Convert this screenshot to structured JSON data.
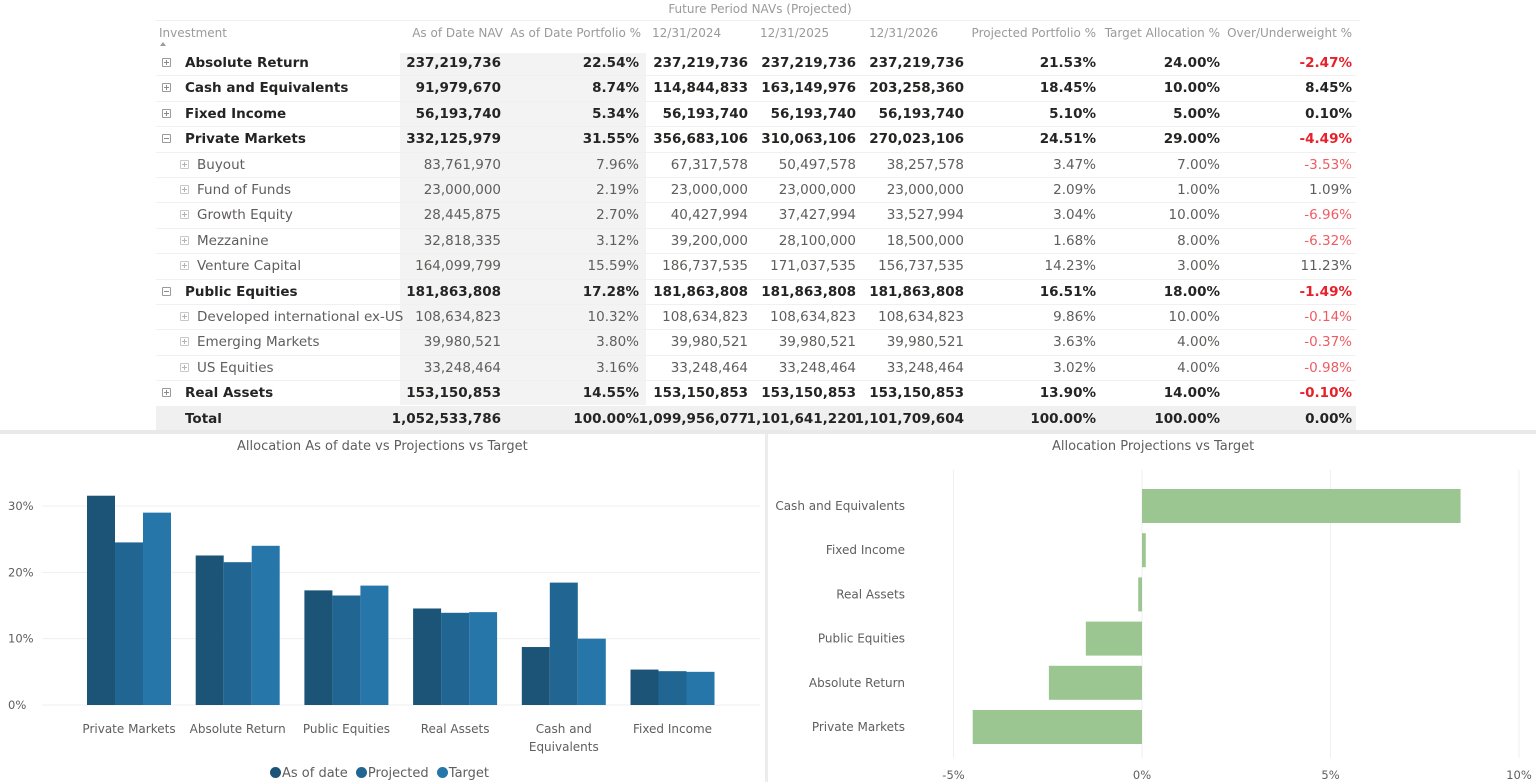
{
  "matrix": {
    "group_header": "Future Period NAVs (Projected)",
    "columns": [
      "Investment",
      "As of Date NAV",
      "As of Date Portfolio %",
      "12/31/2024",
      "12/31/2025",
      "12/31/2026",
      "Projected Portfolio %",
      "Target Allocation %",
      "Over/Underweight %"
    ],
    "sort": {
      "column": "Investment",
      "direction": "ascending"
    },
    "rows": [
      {
        "level": 0,
        "expanded": false,
        "label": "Absolute Return",
        "values": [
          "237,219,736",
          "22.54%",
          "237,219,736",
          "237,219,736",
          "237,219,736",
          "21.53%",
          "24.00%",
          "-2.47%"
        ],
        "negative": true
      },
      {
        "level": 0,
        "expanded": false,
        "label": "Cash and Equivalents",
        "values": [
          "91,979,670",
          "8.74%",
          "114,844,833",
          "163,149,976",
          "203,258,360",
          "18.45%",
          "10.00%",
          "8.45%"
        ],
        "negative": false
      },
      {
        "level": 0,
        "expanded": false,
        "label": "Fixed Income",
        "values": [
          "56,193,740",
          "5.34%",
          "56,193,740",
          "56,193,740",
          "56,193,740",
          "5.10%",
          "5.00%",
          "0.10%"
        ],
        "negative": false
      },
      {
        "level": 0,
        "expanded": true,
        "label": "Private Markets",
        "values": [
          "332,125,979",
          "31.55%",
          "356,683,106",
          "310,063,106",
          "270,023,106",
          "24.51%",
          "29.00%",
          "-4.49%"
        ],
        "negative": true
      },
      {
        "level": 1,
        "expanded": false,
        "label": "Buyout",
        "values": [
          "83,761,970",
          "7.96%",
          "67,317,578",
          "50,497,578",
          "38,257,578",
          "3.47%",
          "7.00%",
          "-3.53%"
        ],
        "negative": true
      },
      {
        "level": 1,
        "expanded": false,
        "label": "Fund of Funds",
        "values": [
          "23,000,000",
          "2.19%",
          "23,000,000",
          "23,000,000",
          "23,000,000",
          "2.09%",
          "1.00%",
          "1.09%"
        ],
        "negative": false
      },
      {
        "level": 1,
        "expanded": false,
        "label": "Growth Equity",
        "values": [
          "28,445,875",
          "2.70%",
          "40,427,994",
          "37,427,994",
          "33,527,994",
          "3.04%",
          "10.00%",
          "-6.96%"
        ],
        "negative": true
      },
      {
        "level": 1,
        "expanded": false,
        "label": "Mezzanine",
        "values": [
          "32,818,335",
          "3.12%",
          "39,200,000",
          "28,100,000",
          "18,500,000",
          "1.68%",
          "8.00%",
          "-6.32%"
        ],
        "negative": true
      },
      {
        "level": 1,
        "expanded": false,
        "label": "Venture Capital",
        "values": [
          "164,099,799",
          "15.59%",
          "186,737,535",
          "171,037,535",
          "156,737,535",
          "14.23%",
          "3.00%",
          "11.23%"
        ],
        "negative": false
      },
      {
        "level": 0,
        "expanded": true,
        "label": "Public Equities",
        "values": [
          "181,863,808",
          "17.28%",
          "181,863,808",
          "181,863,808",
          "181,863,808",
          "16.51%",
          "18.00%",
          "-1.49%"
        ],
        "negative": true
      },
      {
        "level": 1,
        "expanded": false,
        "label": "Developed international ex-US",
        "values": [
          "108,634,823",
          "10.32%",
          "108,634,823",
          "108,634,823",
          "108,634,823",
          "9.86%",
          "10.00%",
          "-0.14%"
        ],
        "negative": true
      },
      {
        "level": 1,
        "expanded": false,
        "label": "Emerging Markets",
        "values": [
          "39,980,521",
          "3.80%",
          "39,980,521",
          "39,980,521",
          "39,980,521",
          "3.63%",
          "4.00%",
          "-0.37%"
        ],
        "negative": true
      },
      {
        "level": 1,
        "expanded": false,
        "label": "US Equities",
        "values": [
          "33,248,464",
          "3.16%",
          "33,248,464",
          "33,248,464",
          "33,248,464",
          "3.02%",
          "4.00%",
          "-0.98%"
        ],
        "negative": true
      },
      {
        "level": 0,
        "expanded": false,
        "label": "Real Assets",
        "values": [
          "153,150,853",
          "14.55%",
          "153,150,853",
          "153,150,853",
          "153,150,853",
          "13.90%",
          "14.00%",
          "-0.10%"
        ],
        "negative": true
      }
    ],
    "total": {
      "label": "Total",
      "values": [
        "1,052,533,786",
        "100.00%",
        "1,099,956,077",
        "1,101,641,220",
        "1,101,709,604",
        "100.00%",
        "100.00%",
        "0.00%"
      ]
    }
  },
  "colors": {
    "negative_bold": "#e8202a",
    "negative": "#ee5c63",
    "as_of_date": "#1c5478",
    "projected": "#216592",
    "target": "#2776aa",
    "variance_bar": "#9bc591"
  },
  "chart_data": [
    {
      "type": "bar",
      "title": "Allocation As of date vs Projections vs Target",
      "categories": [
        "Private Markets",
        "Absolute Return",
        "Public Equities",
        "Real Assets",
        "Cash and Equivalents",
        "Fixed Income"
      ],
      "series": [
        {
          "name": "As of date",
          "values": [
            31.55,
            22.54,
            17.28,
            14.55,
            8.74,
            5.34
          ]
        },
        {
          "name": "Projected",
          "values": [
            24.51,
            21.53,
            16.51,
            13.9,
            18.45,
            5.1
          ]
        },
        {
          "name": "Target",
          "values": [
            29.0,
            24.0,
            18.0,
            14.0,
            10.0,
            5.0
          ]
        }
      ],
      "xlabel": "",
      "ylabel": "",
      "ylim": [
        0,
        35
      ],
      "yticks": [
        0,
        10,
        20,
        30
      ],
      "ytick_labels": [
        "0%",
        "10%",
        "20%",
        "30%"
      ],
      "grid": true,
      "legend": "bottom-center"
    },
    {
      "type": "bar",
      "orientation": "horizontal",
      "title": "Allocation Projections vs Target",
      "categories": [
        "Cash and Equivalents",
        "Fixed Income",
        "Real Assets",
        "Public Equities",
        "Absolute Return",
        "Private Markets"
      ],
      "values": [
        8.45,
        0.1,
        -0.1,
        -1.49,
        -2.47,
        -4.49
      ],
      "xlabel": "",
      "ylabel": "",
      "xlim": [
        -5,
        10
      ],
      "xticks": [
        -5,
        0,
        5,
        10
      ],
      "xtick_labels": [
        "-5%",
        "0%",
        "5%",
        "10%"
      ],
      "grid": true,
      "legend": "none"
    }
  ]
}
